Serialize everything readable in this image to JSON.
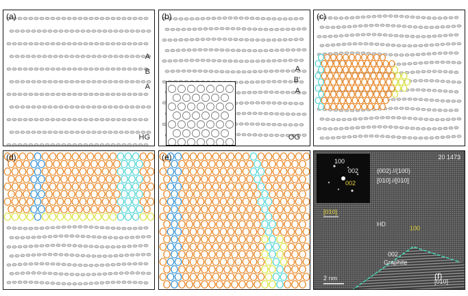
{
  "panels": {
    "a": {
      "label": "(a)",
      "stacking": [
        "A",
        "B",
        "A"
      ],
      "tag": "HG"
    },
    "b": {
      "label": "(b)",
      "stacking": [
        "A",
        "B'",
        "A"
      ],
      "tag": "OG"
    },
    "c": {
      "label": "(c)"
    },
    "d": {
      "label": "(d)"
    },
    "e": {
      "label": "(e)"
    },
    "f": {
      "label": "(f)",
      "corner": "20 1473",
      "fft_labels": [
        "100",
        "002",
        "002"
      ],
      "orientation_lines": [
        "(002) //(100)",
        "[010] //[010]"
      ],
      "zone_axis_hd": "[010]",
      "hd_label": "HD",
      "yellow_100": "100",
      "graphite_002": "002",
      "graphite_label": "Graphite",
      "scale_bar": "2 nm",
      "zone_axis_g": "[010]"
    }
  },
  "colors": {
    "atom_gray": "#9a9a9a",
    "orange": "#e8821e",
    "blue": "#2f8fd4",
    "cyan": "#4cd2d2",
    "yellow": "#d9e23a",
    "boundary": "#49d6b4"
  }
}
